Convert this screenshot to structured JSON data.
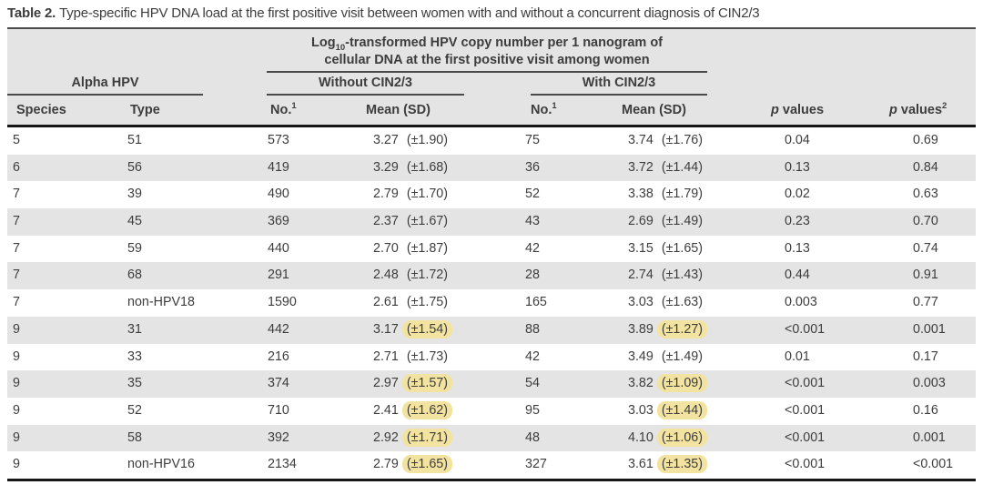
{
  "title": {
    "label": "Table 2.",
    "text": "Type-specific HPV DNA load at the first positive visit between women with and without a concurrent diagnosis of CIN2/3"
  },
  "header": {
    "log_base": "Log",
    "log_sub": "10",
    "line1_rest": "-transformed HPV copy number per 1 nanogram of",
    "line2": "cellular DNA at the first positive visit among women",
    "alpha_group": "Alpha HPV",
    "without_group": "Without CIN2/3",
    "with_group": "With CIN2/3",
    "species": "Species",
    "type": "Type",
    "no_base": "No.",
    "no_sup": "1",
    "mean_sd": "Mean (SD)",
    "p_italic": "p",
    "p_rest": " values",
    "p2_sup": "2"
  },
  "highlight_color": "#f3e3a0",
  "shaded_row_color": "#e4e4e4",
  "rows": [
    {
      "species": "5",
      "type": "51",
      "wo_no": "573",
      "wo_mean": "3.27",
      "wo_sd": "(±1.90)",
      "wo_hl": false,
      "w_no": "75",
      "w_mean": "3.74",
      "w_sd": "(±1.76)",
      "w_hl": false,
      "p1": "0.04",
      "p2": "0.69"
    },
    {
      "species": "6",
      "type": "56",
      "wo_no": "419",
      "wo_mean": "3.29",
      "wo_sd": "(±1.68)",
      "wo_hl": false,
      "w_no": "36",
      "w_mean": "3.72",
      "w_sd": "(±1.44)",
      "w_hl": false,
      "p1": "0.13",
      "p2": "0.84"
    },
    {
      "species": "7",
      "type": "39",
      "wo_no": "490",
      "wo_mean": "2.79",
      "wo_sd": "(±1.70)",
      "wo_hl": false,
      "w_no": "52",
      "w_mean": "3.38",
      "w_sd": "(±1.79)",
      "w_hl": false,
      "p1": "0.02",
      "p2": "0.63"
    },
    {
      "species": "7",
      "type": "45",
      "wo_no": "369",
      "wo_mean": "2.37",
      "wo_sd": "(±1.67)",
      "wo_hl": false,
      "w_no": "43",
      "w_mean": "2.69",
      "w_sd": "(±1.49)",
      "w_hl": false,
      "p1": "0.23",
      "p2": "0.70"
    },
    {
      "species": "7",
      "type": "59",
      "wo_no": "440",
      "wo_mean": "2.70",
      "wo_sd": "(±1.87)",
      "wo_hl": false,
      "w_no": "42",
      "w_mean": "3.15",
      "w_sd": "(±1.65)",
      "w_hl": false,
      "p1": "0.13",
      "p2": "0.74"
    },
    {
      "species": "7",
      "type": "68",
      "wo_no": "291",
      "wo_mean": "2.48",
      "wo_sd": "(±1.72)",
      "wo_hl": false,
      "w_no": "28",
      "w_mean": "2.74",
      "w_sd": "(±1.43)",
      "w_hl": false,
      "p1": "0.44",
      "p2": "0.91"
    },
    {
      "species": "7",
      "type": "non-HPV18",
      "wo_no": "1590",
      "wo_mean": "2.61",
      "wo_sd": "(±1.75)",
      "wo_hl": false,
      "w_no": "165",
      "w_mean": "3.03",
      "w_sd": "(±1.63)",
      "w_hl": false,
      "p1": "0.003",
      "p2": "0.77"
    },
    {
      "species": "9",
      "type": "31",
      "wo_no": "442",
      "wo_mean": "3.17",
      "wo_sd": "(±1.54)",
      "wo_hl": true,
      "w_no": "88",
      "w_mean": "3.89",
      "w_sd": "(±1.27)",
      "w_hl": true,
      "p1": "<0.001",
      "p2": "0.001"
    },
    {
      "species": "9",
      "type": "33",
      "wo_no": "216",
      "wo_mean": "2.71",
      "wo_sd": "(±1.73)",
      "wo_hl": false,
      "w_no": "42",
      "w_mean": "3.49",
      "w_sd": "(±1.49)",
      "w_hl": false,
      "p1": "0.01",
      "p2": "0.17"
    },
    {
      "species": "9",
      "type": "35",
      "wo_no": "374",
      "wo_mean": "2.97",
      "wo_sd": "(±1.57)",
      "wo_hl": true,
      "w_no": "54",
      "w_mean": "3.82",
      "w_sd": "(±1.09)",
      "w_hl": true,
      "p1": "<0.001",
      "p2": "0.003"
    },
    {
      "species": "9",
      "type": "52",
      "wo_no": "710",
      "wo_mean": "2.41",
      "wo_sd": "(±1.62)",
      "wo_hl": true,
      "w_no": "95",
      "w_mean": "3.03",
      "w_sd": "(±1.44)",
      "w_hl": true,
      "p1": "<0.001",
      "p2": "0.16"
    },
    {
      "species": "9",
      "type": "58",
      "wo_no": "392",
      "wo_mean": "2.92",
      "wo_sd": "(±1.71)",
      "wo_hl": true,
      "w_no": "48",
      "w_mean": "4.10",
      "w_sd": "(±1.06)",
      "w_hl": true,
      "p1": "<0.001",
      "p2": "0.001"
    },
    {
      "species": "9",
      "type": "non-HPV16",
      "wo_no": "2134",
      "wo_mean": "2.79",
      "wo_sd": "(±1.65)",
      "wo_hl": true,
      "w_no": "327",
      "w_mean": "3.61",
      "w_sd": "(±1.35)",
      "w_hl": true,
      "p1": "<0.001",
      "p2": "<0.001"
    }
  ]
}
